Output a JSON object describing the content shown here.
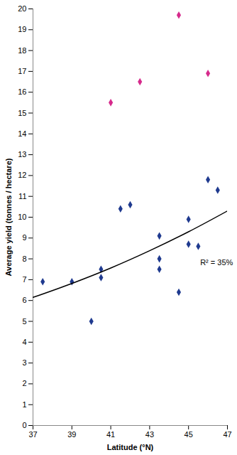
{
  "chart_data": {
    "type": "scatter",
    "x_label": "Latitude (°N)",
    "y_label": "Average yield (tonnes / hectare)",
    "xlim": [
      37,
      47
    ],
    "xticks": [
      37,
      39,
      41,
      43,
      45,
      47
    ],
    "ylim": [
      0,
      20
    ],
    "yticks": [
      0,
      1,
      2,
      3,
      4,
      5,
      6,
      7,
      8,
      9,
      10,
      11,
      12,
      13,
      14,
      15,
      16,
      17,
      18,
      19,
      20
    ],
    "grid": false,
    "series": [
      {
        "type": "scatter",
        "color": "#1f3a8f",
        "marker": "diamond",
        "x": [
          37.5,
          39,
          40,
          40.5,
          40.5,
          41.5,
          42,
          43.5,
          43.5,
          43.5,
          44.5,
          45,
          45,
          45.5,
          46,
          46.5
        ],
        "values": [
          6.9,
          6.9,
          5.0,
          7.5,
          7.1,
          10.4,
          10.6,
          9.1,
          8.0,
          7.5,
          6.4,
          9.9,
          8.7,
          8.6,
          11.8,
          11.3
        ]
      },
      {
        "type": "scatter",
        "color": "#d62a8c",
        "marker": "diamond",
        "x": [
          41,
          42.5,
          44.5,
          46
        ],
        "values": [
          15.5,
          16.5,
          19.7,
          16.9
        ]
      },
      {
        "type": "line",
        "color": "#000000",
        "line_style": "solid",
        "x": [
          37,
          39,
          41,
          43,
          45,
          47
        ],
        "values": [
          6.15,
          6.82,
          7.56,
          8.39,
          9.3,
          10.3
        ]
      }
    ],
    "annotations": [
      {
        "text": "R² = 35%",
        "x": 45.6,
        "y": 7.8
      }
    ]
  }
}
